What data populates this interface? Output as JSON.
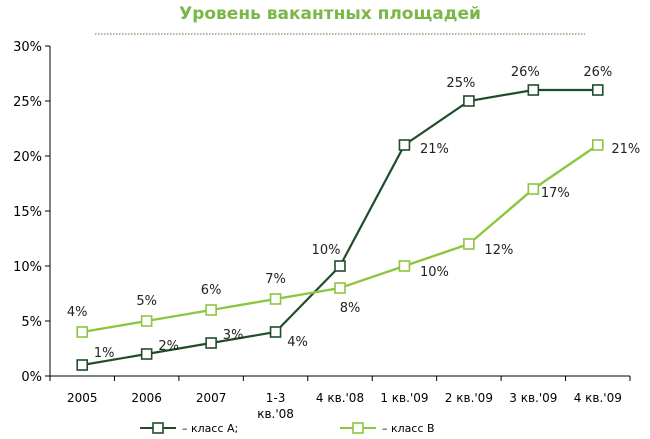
{
  "chart_data": {
    "type": "line",
    "title": "Уровень вакантных площадей",
    "categories": [
      "2005",
      "2006",
      "2007",
      "1-3 кв.'08",
      "4 кв.'08",
      "1 кв.'09",
      "2 кв.'09",
      "3 кв.'09",
      "4 кв.'09"
    ],
    "category_lines": [
      [
        "2005"
      ],
      [
        "2006"
      ],
      [
        "2007"
      ],
      [
        "1-3",
        "кв.'08"
      ],
      [
        "4 кв.'08"
      ],
      [
        "1 кв.'09"
      ],
      [
        "2 кв.'09"
      ],
      [
        "3 кв.'09"
      ],
      [
        "4 кв.'09"
      ]
    ],
    "ylim": [
      0,
      30
    ],
    "yticks": [
      0,
      5,
      10,
      15,
      20,
      25,
      30
    ],
    "ytick_labels": [
      "0%",
      "5%",
      "10%",
      "15%",
      "20%",
      "25%",
      "30%"
    ],
    "xlabel": "",
    "ylabel": "",
    "grid": false,
    "legend_position": "bottom",
    "series": [
      {
        "name": "– класс А;",
        "color": "#1f4d2c",
        "values": [
          1,
          2,
          3,
          4,
          10,
          21,
          25,
          26,
          26
        ],
        "labels": [
          "1%",
          "2%",
          "3%",
          "4%",
          "10%",
          "21%",
          "25%",
          "26%",
          "26%"
        ]
      },
      {
        "name": "– класс В",
        "color": "#8cc63f",
        "values": [
          4,
          5,
          6,
          7,
          8,
          10,
          12,
          17,
          21
        ],
        "labels": [
          "4%",
          "5%",
          "6%",
          "7%",
          "8%",
          "10%",
          "12%",
          "17%",
          "21%"
        ]
      }
    ]
  },
  "colors": {
    "title": "#7ab648",
    "axis": "#000000",
    "divider": "#4a7a3a"
  }
}
